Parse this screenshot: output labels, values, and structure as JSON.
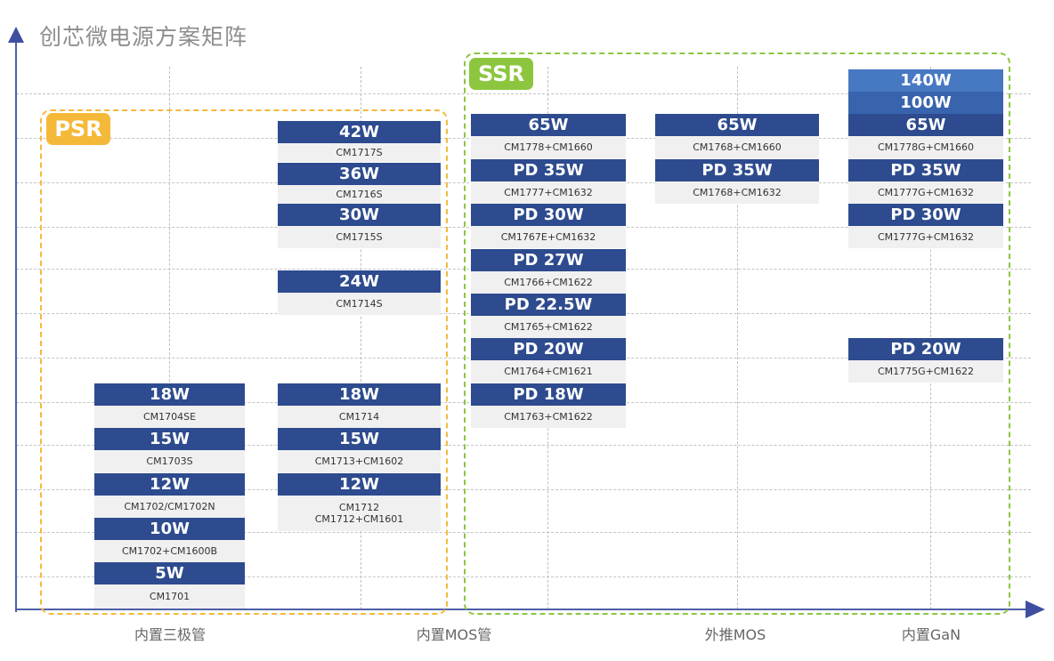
{
  "title": "创芯微电源方案矩阵",
  "colors": {
    "card_header": "#2d4b8e",
    "card_header_140w": "#4778c2",
    "card_header_100w": "#3864ad",
    "model_bg": "#f0f0f0",
    "psr": "#f5b93a",
    "ssr": "#8cc63f",
    "axis": "#4f5fa8",
    "title": "#8e8e8e"
  },
  "regions": {
    "psr": {
      "label": "PSR"
    },
    "ssr": {
      "label": "SSR"
    }
  },
  "x_axis": {
    "categories": [
      "内置三极管",
      "内置MOS管",
      "外推MOS",
      "内置GaN"
    ]
  },
  "columns": [
    {
      "group": "内置三极管",
      "cards": [
        {
          "power": "18W",
          "model": "CM1704SE"
        },
        {
          "power": "15W",
          "model": "CM1703S"
        },
        {
          "power": "12W",
          "model": "CM1702/CM1702N"
        },
        {
          "power": "10W",
          "model": "CM1702+CM1600B"
        },
        {
          "power": "5W",
          "model": "CM1701"
        }
      ]
    },
    {
      "group": "内置MOS管 (PSR)",
      "cards": [
        {
          "power": "42W",
          "model": "CM1717S"
        },
        {
          "power": "36W",
          "model": "CM1716S"
        },
        {
          "power": "30W",
          "model": "CM1715S"
        },
        {
          "power": "24W",
          "model": "CM1714S"
        },
        {
          "power": "18W",
          "model": "CM1714"
        },
        {
          "power": "15W",
          "model": "CM1713+CM1602"
        },
        {
          "power": "12W",
          "model": "CM1712\nCM1712+CM1601"
        }
      ]
    },
    {
      "group": "内置MOS管 (SSR)",
      "cards": [
        {
          "power": "65W",
          "model": "CM1778+CM1660"
        },
        {
          "power": "PD 35W",
          "model": "CM1777+CM1632"
        },
        {
          "power": "PD 30W",
          "model": "CM1767E+CM1632"
        },
        {
          "power": "PD 27W",
          "model": "CM1766+CM1622"
        },
        {
          "power": "PD 22.5W",
          "model": "CM1765+CM1622"
        },
        {
          "power": "PD 20W",
          "model": "CM1764+CM1621"
        },
        {
          "power": "PD 18W",
          "model": "CM1763+CM1622"
        }
      ]
    },
    {
      "group": "外推MOS",
      "cards": [
        {
          "power": "65W",
          "model": "CM1768+CM1660"
        },
        {
          "power": "PD 35W",
          "model": "CM1768+CM1632"
        }
      ]
    },
    {
      "group": "内置GaN",
      "cards": [
        {
          "power": "140W",
          "model": ""
        },
        {
          "power": "100W",
          "model": ""
        },
        {
          "power": "65W",
          "model": "CM1778G+CM1660"
        },
        {
          "power": "PD 35W",
          "model": "CM1777G+CM1632"
        },
        {
          "power": "PD 30W",
          "model": "CM1777G+CM1632"
        },
        {
          "power": "PD 20W",
          "model": "CM1775G+CM1622"
        }
      ]
    }
  ]
}
